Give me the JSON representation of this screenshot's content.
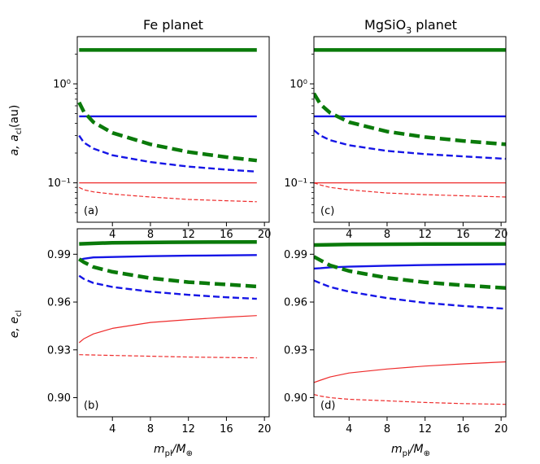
{
  "figure": {
    "col_titles": [
      {
        "text": "Fe planet"
      },
      {
        "main": "MgSiO",
        "sub": "3",
        "tail": " planet"
      }
    ],
    "ylabel_top": {
      "main": "a, a",
      "sub": "cl",
      "tail": "(au)"
    },
    "ylabel_bottom": {
      "main": "e, e",
      "sub": "cl"
    },
    "xlabel": {
      "main": "m",
      "sub": "pl",
      "mid": "/M",
      "sub2": "⊕"
    }
  },
  "colors": {
    "green": "#0a7a0a",
    "blue": "#1515e6",
    "red": "#ee2b2b"
  },
  "chart_data": [
    {
      "id": "a",
      "panel_label": "(a)",
      "type": "line",
      "yscale": "log",
      "xlim": [
        0.3,
        20.5
      ],
      "ylim": [
        0.04,
        3.0
      ],
      "xticks": [
        4,
        8,
        12,
        16,
        20
      ],
      "xtick_labels": [
        "4",
        "8",
        "12",
        "16",
        "20"
      ],
      "yticks": [
        0.1,
        1.0
      ],
      "ytick_labels": [
        "10⁻¹",
        "10⁰"
      ],
      "series": [
        {
          "name": "green solid",
          "color": "green",
          "dash": "solid",
          "weight": "thick",
          "x": [
            0.5,
            19.2
          ],
          "y": [
            2.2,
            2.2
          ]
        },
        {
          "name": "blue solid",
          "color": "blue",
          "dash": "solid",
          "weight": "medium",
          "x": [
            0.5,
            19.2
          ],
          "y": [
            0.47,
            0.47
          ]
        },
        {
          "name": "red solid",
          "color": "red",
          "dash": "solid",
          "weight": "thin",
          "x": [
            0.5,
            19.2
          ],
          "y": [
            0.1,
            0.1
          ]
        },
        {
          "name": "green dashed",
          "color": "green",
          "dash": "dashed",
          "weight": "thick",
          "x": [
            0.5,
            1,
            2,
            4,
            8,
            12,
            16,
            19.2
          ],
          "y": [
            0.65,
            0.52,
            0.41,
            0.32,
            0.245,
            0.205,
            0.182,
            0.168
          ]
        },
        {
          "name": "blue dashed",
          "color": "blue",
          "dash": "dashed",
          "weight": "medium",
          "x": [
            0.5,
            1,
            2,
            4,
            8,
            12,
            16,
            19.2
          ],
          "y": [
            0.3,
            0.255,
            0.222,
            0.19,
            0.162,
            0.146,
            0.136,
            0.13
          ]
        },
        {
          "name": "red dashed",
          "color": "red",
          "dash": "dashed",
          "weight": "thin",
          "x": [
            0.5,
            1,
            2,
            4,
            8,
            12,
            16,
            19.2
          ],
          "y": [
            0.09,
            0.085,
            0.081,
            0.077,
            0.072,
            0.068,
            0.066,
            0.0645
          ]
        }
      ]
    },
    {
      "id": "c",
      "panel_label": "(c)",
      "type": "line",
      "yscale": "log",
      "xlim": [
        0.3,
        20.5
      ],
      "ylim": [
        0.04,
        3.0
      ],
      "xticks": [
        4,
        8,
        12,
        16,
        20
      ],
      "xtick_labels": [
        "4",
        "8",
        "12",
        "16",
        "20"
      ],
      "yticks": [
        0.1,
        1.0
      ],
      "ytick_labels": [
        "10⁻¹",
        "10⁰"
      ],
      "series": [
        {
          "name": "green solid",
          "color": "green",
          "dash": "solid",
          "weight": "thick",
          "x": [
            0.3,
            20.5
          ],
          "y": [
            2.2,
            2.2
          ]
        },
        {
          "name": "blue solid",
          "color": "blue",
          "dash": "solid",
          "weight": "medium",
          "x": [
            0.3,
            20.5
          ],
          "y": [
            0.47,
            0.47
          ]
        },
        {
          "name": "red solid",
          "color": "red",
          "dash": "solid",
          "weight": "thin",
          "x": [
            0.3,
            20.5
          ],
          "y": [
            0.1,
            0.1
          ]
        },
        {
          "name": "green dashed",
          "color": "green",
          "dash": "dashed",
          "weight": "thick",
          "x": [
            0.3,
            1,
            2,
            4,
            8,
            12,
            16,
            20.5
          ],
          "y": [
            0.8,
            0.62,
            0.51,
            0.41,
            0.33,
            0.29,
            0.265,
            0.245
          ]
        },
        {
          "name": "blue dashed",
          "color": "blue",
          "dash": "dashed",
          "weight": "medium",
          "x": [
            0.3,
            1,
            2,
            4,
            8,
            12,
            16,
            20.5
          ],
          "y": [
            0.34,
            0.3,
            0.27,
            0.24,
            0.21,
            0.195,
            0.185,
            0.175
          ]
        },
        {
          "name": "red dashed",
          "color": "red",
          "dash": "dashed",
          "weight": "thin",
          "x": [
            0.3,
            1,
            2,
            4,
            8,
            12,
            16,
            20.5
          ],
          "y": [
            0.1,
            0.095,
            0.09,
            0.085,
            0.079,
            0.076,
            0.074,
            0.072
          ]
        }
      ]
    },
    {
      "id": "b",
      "panel_label": "(b)",
      "type": "line",
      "yscale": "linear",
      "xlim": [
        0.3,
        20.5
      ],
      "ylim": [
        0.888,
        1.006
      ],
      "xticks": [
        4,
        8,
        12,
        16,
        20
      ],
      "xtick_labels": [
        "4",
        "8",
        "12",
        "16",
        "20"
      ],
      "yticks": [
        0.9,
        0.93,
        0.96,
        0.99
      ],
      "ytick_labels": [
        "0.90",
        "0.93",
        "0.96",
        "0.99"
      ],
      "series": [
        {
          "name": "green solid",
          "color": "green",
          "dash": "solid",
          "weight": "thick",
          "x": [
            0.5,
            4,
            10,
            19.2
          ],
          "y": [
            0.9965,
            0.9972,
            0.9975,
            0.9977
          ]
        },
        {
          "name": "blue solid",
          "color": "blue",
          "dash": "solid",
          "weight": "medium",
          "x": [
            0.5,
            1,
            2,
            4,
            8,
            12,
            16,
            19.2
          ],
          "y": [
            0.9865,
            0.9872,
            0.988,
            0.9883,
            0.9888,
            0.9891,
            0.9893,
            0.9895
          ]
        },
        {
          "name": "red solid",
          "color": "red",
          "dash": "solid",
          "weight": "thin",
          "x": [
            0.5,
            1,
            2,
            4,
            8,
            12,
            16,
            19.2
          ],
          "y": [
            0.9345,
            0.937,
            0.94,
            0.9435,
            0.9472,
            0.949,
            0.9505,
            0.9515
          ]
        },
        {
          "name": "green dashed",
          "color": "green",
          "dash": "dashed",
          "weight": "thick",
          "x": [
            0.5,
            1,
            2,
            4,
            8,
            12,
            16,
            19.2
          ],
          "y": [
            0.987,
            0.985,
            0.982,
            0.979,
            0.975,
            0.9725,
            0.971,
            0.9698
          ]
        },
        {
          "name": "blue dashed",
          "color": "blue",
          "dash": "dashed",
          "weight": "medium",
          "x": [
            0.5,
            1,
            2,
            4,
            8,
            12,
            16,
            19.2
          ],
          "y": [
            0.9765,
            0.9745,
            0.972,
            0.9695,
            0.9665,
            0.9645,
            0.963,
            0.962
          ]
        },
        {
          "name": "red dashed",
          "color": "red",
          "dash": "dashed",
          "weight": "thin",
          "x": [
            0.5,
            4,
            8,
            12,
            16,
            19.2
          ],
          "y": [
            0.927,
            0.9265,
            0.926,
            0.9255,
            0.9252,
            0.925
          ]
        }
      ]
    },
    {
      "id": "d",
      "panel_label": "(d)",
      "type": "line",
      "yscale": "linear",
      "xlim": [
        0.3,
        20.5
      ],
      "ylim": [
        0.888,
        1.006
      ],
      "xticks": [
        4,
        8,
        12,
        16,
        20
      ],
      "xtick_labels": [
        "4",
        "8",
        "12",
        "16",
        "20"
      ],
      "yticks": [
        0.9,
        0.93,
        0.96,
        0.99
      ],
      "ytick_labels": [
        "0.90",
        "0.93",
        "0.96",
        "0.99"
      ],
      "series": [
        {
          "name": "green solid",
          "color": "green",
          "dash": "solid",
          "weight": "thick",
          "x": [
            0.3,
            4,
            12,
            20.5
          ],
          "y": [
            0.9958,
            0.9962,
            0.9964,
            0.9965
          ]
        },
        {
          "name": "blue solid",
          "color": "blue",
          "dash": "solid",
          "weight": "medium",
          "x": [
            0.3,
            1,
            2,
            4,
            8,
            12,
            16,
            20.5
          ],
          "y": [
            0.981,
            0.9813,
            0.9818,
            0.9822,
            0.9828,
            0.9832,
            0.9835,
            0.9838
          ]
        },
        {
          "name": "red solid",
          "color": "red",
          "dash": "solid",
          "weight": "thin",
          "x": [
            0.3,
            1,
            2,
            4,
            8,
            12,
            16,
            20.5
          ],
          "y": [
            0.9095,
            0.911,
            0.913,
            0.9155,
            0.918,
            0.9198,
            0.9212,
            0.9225
          ]
        },
        {
          "name": "green dashed",
          "color": "green",
          "dash": "dashed",
          "weight": "thick",
          "x": [
            0.3,
            1,
            2,
            4,
            8,
            12,
            16,
            20.5
          ],
          "y": [
            0.9885,
            0.9862,
            0.983,
            0.9795,
            0.9752,
            0.9724,
            0.9705,
            0.9688
          ]
        },
        {
          "name": "blue dashed",
          "color": "blue",
          "dash": "dashed",
          "weight": "medium",
          "x": [
            0.3,
            1,
            2,
            4,
            8,
            12,
            16,
            20.5
          ],
          "y": [
            0.9735,
            0.9718,
            0.9695,
            0.9665,
            0.9625,
            0.9595,
            0.9575,
            0.9558
          ]
        },
        {
          "name": "red dashed",
          "color": "red",
          "dash": "dashed",
          "weight": "thin",
          "x": [
            0.3,
            1,
            2,
            4,
            8,
            12,
            16,
            20.5
          ],
          "y": [
            0.902,
            0.901,
            0.9,
            0.899,
            0.898,
            0.897,
            0.8963,
            0.8958
          ]
        }
      ]
    }
  ]
}
